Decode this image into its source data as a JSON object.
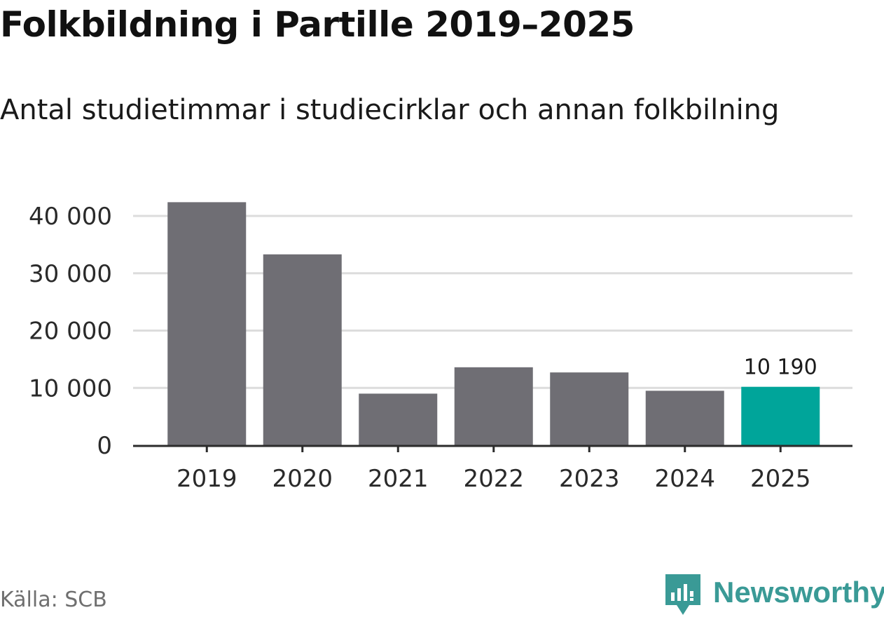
{
  "title": "Folkbildning i Partille 2019–2025",
  "subtitle": "Antal studietimmar i studiecirklar och annan folkbilning",
  "source": "Källa: SCB",
  "brand": {
    "name": "Newsworthy",
    "icon": "newsworthy-logo-icon"
  },
  "colors": {
    "bar": "#6f6e74",
    "highlight": "#00a59a",
    "grid": "#dcdcdc",
    "axis": "#2b2b2b",
    "brand": "#3a9a96"
  },
  "chart_data": {
    "type": "bar",
    "title": "Folkbildning i Partille 2019–2025",
    "subtitle": "Antal studietimmar i studiecirklar och annan folkbilning",
    "categories": [
      "2019",
      "2020",
      "2021",
      "2022",
      "2023",
      "2024",
      "2025"
    ],
    "values": [
      42400,
      33300,
      9000,
      13600,
      12700,
      9500,
      10190
    ],
    "highlight_index": 6,
    "data_labels": [
      {
        "index": 6,
        "text": "10 190"
      }
    ],
    "xlabel": "",
    "ylabel": "",
    "ylim": [
      0,
      40000
    ],
    "yticks": [
      0,
      10000,
      20000,
      30000,
      40000
    ],
    "ytick_labels": [
      "0",
      "10 000",
      "20 000",
      "30 000",
      "40 000"
    ],
    "grid": true,
    "legend": "none"
  }
}
